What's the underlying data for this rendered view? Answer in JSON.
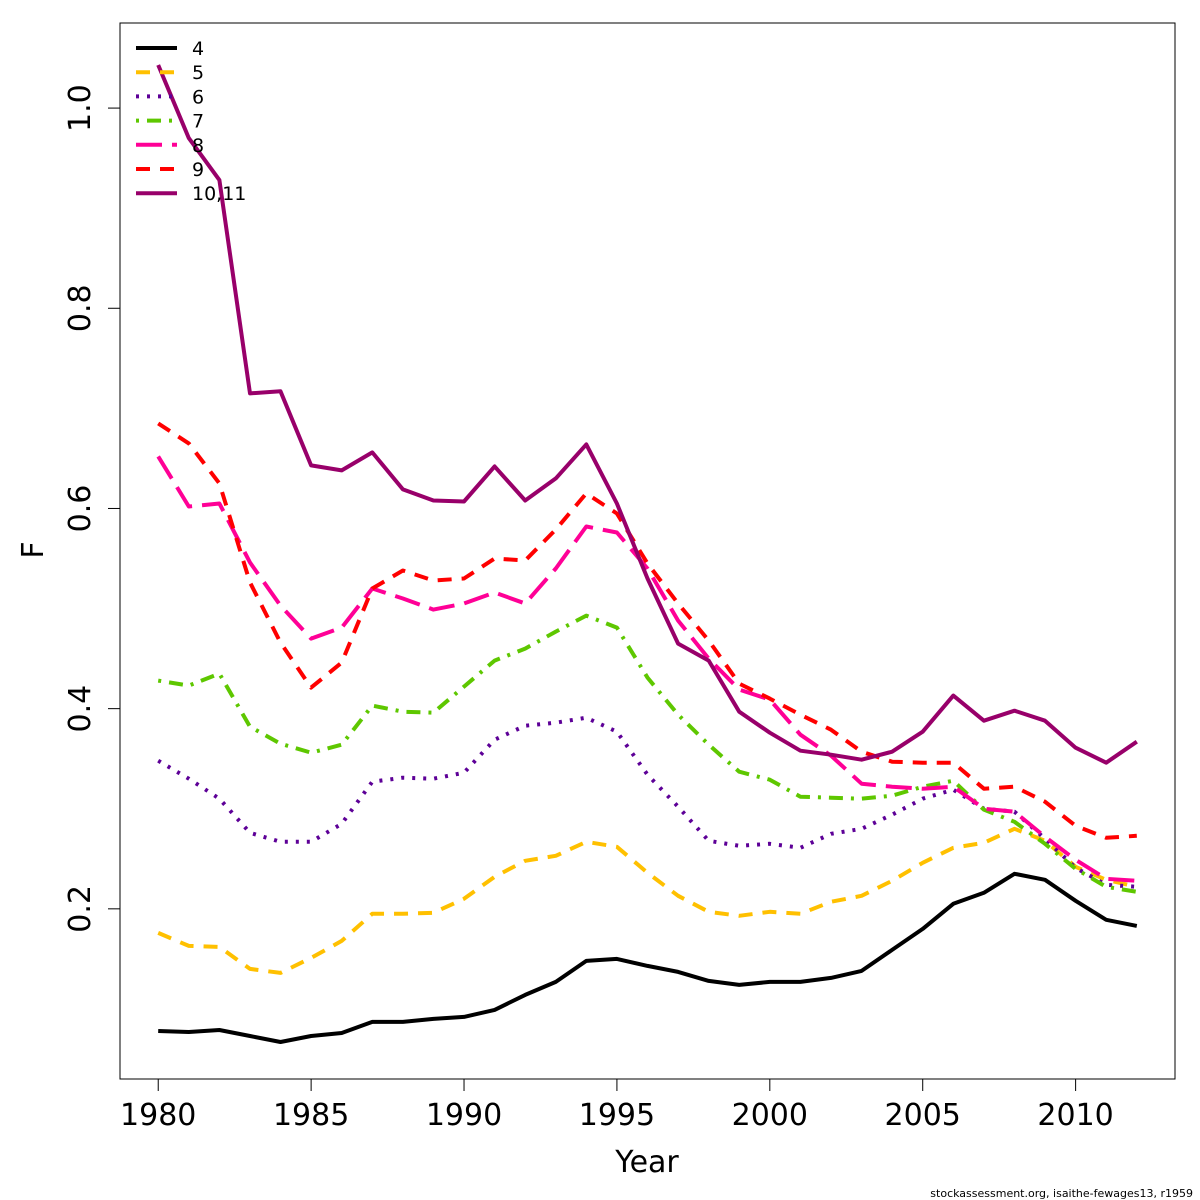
{
  "chart_data": {
    "type": "line",
    "title": "",
    "xlabel": "Year",
    "ylabel": "F",
    "xlim": [
      1978.75,
      2013.25
    ],
    "ylim": [
      0.03,
      1.085
    ],
    "x_ticks": [
      1980,
      1985,
      1990,
      1995,
      2000,
      2005,
      2010
    ],
    "y_ticks": [
      0.2,
      0.4,
      0.6,
      0.8,
      1.0
    ],
    "y_tick_labels": [
      "0.2",
      "0.4",
      "0.6",
      "0.8",
      "1.0"
    ],
    "grid": false,
    "legend_position": "top-left",
    "x": [
      1980,
      1981,
      1982,
      1983,
      1984,
      1985,
      1986,
      1987,
      1988,
      1989,
      1990,
      1991,
      1992,
      1993,
      1994,
      1995,
      1996,
      1997,
      1998,
      1999,
      2000,
      2001,
      2002,
      2003,
      2004,
      2005,
      2006,
      2007,
      2008,
      2009,
      2010,
      2011,
      2012
    ],
    "series": [
      {
        "name": "4",
        "color": "#000000",
        "dash": "solid",
        "values": [
          0.078,
          0.077,
          0.079,
          0.073,
          0.067,
          0.073,
          0.076,
          0.087,
          0.087,
          0.09,
          0.092,
          0.099,
          0.114,
          0.127,
          0.148,
          0.15,
          0.143,
          0.137,
          0.128,
          0.124,
          0.127,
          0.127,
          0.131,
          0.138,
          0.159,
          0.18,
          0.205,
          0.216,
          0.235,
          0.229,
          0.208,
          0.189,
          0.183
        ]
      },
      {
        "name": "5",
        "color": "#FFC000",
        "dash": "dashed",
        "values": [
          0.176,
          0.163,
          0.162,
          0.14,
          0.136,
          0.151,
          0.168,
          0.195,
          0.195,
          0.196,
          0.21,
          0.232,
          0.248,
          0.253,
          0.267,
          0.262,
          0.236,
          0.213,
          0.197,
          0.193,
          0.197,
          0.195,
          0.207,
          0.213,
          0.228,
          0.246,
          0.261,
          0.266,
          0.28,
          0.268,
          0.242,
          0.229,
          0.222
        ]
      },
      {
        "name": "6",
        "color": "#5D0097",
        "dash": "dotted",
        "values": [
          0.348,
          0.33,
          0.31,
          0.276,
          0.267,
          0.267,
          0.285,
          0.327,
          0.331,
          0.33,
          0.336,
          0.369,
          0.383,
          0.386,
          0.391,
          0.377,
          0.334,
          0.302,
          0.268,
          0.263,
          0.265,
          0.261,
          0.275,
          0.28,
          0.294,
          0.31,
          0.319,
          0.3,
          0.297,
          0.27,
          0.241,
          0.224,
          0.222
        ]
      },
      {
        "name": "7",
        "color": "#5EC700",
        "dash": "dotdash",
        "values": [
          0.428,
          0.423,
          0.435,
          0.382,
          0.365,
          0.356,
          0.364,
          0.403,
          0.397,
          0.396,
          0.422,
          0.448,
          0.46,
          0.477,
          0.493,
          0.481,
          0.431,
          0.394,
          0.364,
          0.337,
          0.329,
          0.312,
          0.311,
          0.31,
          0.313,
          0.322,
          0.328,
          0.299,
          0.287,
          0.265,
          0.24,
          0.222,
          0.217
        ]
      },
      {
        "name": "8",
        "color": "#FF0096",
        "dash": "longdash",
        "values": [
          0.652,
          0.602,
          0.605,
          0.546,
          0.503,
          0.47,
          0.481,
          0.52,
          0.51,
          0.499,
          0.505,
          0.516,
          0.505,
          0.54,
          0.582,
          0.576,
          0.54,
          0.488,
          0.45,
          0.419,
          0.409,
          0.374,
          0.353,
          0.325,
          0.322,
          0.32,
          0.322,
          0.3,
          0.297,
          0.272,
          0.249,
          0.23,
          0.228
        ]
      },
      {
        "name": "9",
        "color": "#FF0000",
        "dash": "dashed",
        "values": [
          0.685,
          0.665,
          0.625,
          0.526,
          0.466,
          0.421,
          0.446,
          0.52,
          0.538,
          0.528,
          0.53,
          0.55,
          0.548,
          0.579,
          0.615,
          0.595,
          0.545,
          0.505,
          0.468,
          0.425,
          0.41,
          0.394,
          0.379,
          0.357,
          0.347,
          0.346,
          0.346,
          0.32,
          0.322,
          0.307,
          0.283,
          0.271,
          0.273
        ]
      },
      {
        "name": "10,11",
        "color": "#98006A",
        "dash": "solid",
        "values": [
          1.043,
          0.97,
          0.928,
          0.715,
          0.717,
          0.643,
          0.638,
          0.656,
          0.619,
          0.608,
          0.607,
          0.642,
          0.608,
          0.63,
          0.664,
          0.605,
          0.53,
          0.465,
          0.448,
          0.397,
          0.376,
          0.358,
          0.354,
          0.349,
          0.357,
          0.377,
          0.413,
          0.388,
          0.398,
          0.388,
          0.361,
          0.346,
          0.367
        ]
      }
    ]
  },
  "credit": "stockassessment.org, isaithe-fewages13, r1959"
}
